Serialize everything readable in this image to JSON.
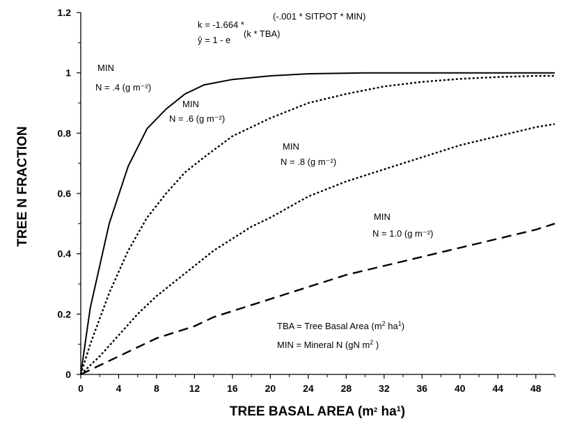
{
  "chart_data": {
    "type": "line",
    "xlabel": "TREE BASAL AREA (m² ha¹)",
    "ylabel": "TREE N FRACTION",
    "xlim": [
      0,
      50
    ],
    "ylim": [
      0,
      1.2
    ],
    "x_ticks": [
      "0",
      "4",
      "8",
      "12",
      "16",
      "20",
      "24",
      "28",
      "32",
      "36",
      "40",
      "44",
      "48"
    ],
    "y_ticks": [
      "0",
      "0.2",
      "0.4",
      "0.6",
      "0.8",
      "1",
      "1.2"
    ],
    "grid": false,
    "equation": {
      "line1": "k = -1.664 *",
      "line1_exponent": "(-.001 * SITPOT * MIN)",
      "line2": "ŷ = 1 - e",
      "line2_exponent": "(k * TBA)"
    },
    "series": [
      {
        "label_top": "MIN",
        "label_bottom": "N = .4 (g m⁻²)",
        "style": "solid",
        "points": [
          [
            0,
            0
          ],
          [
            1,
            0.22
          ],
          [
            3,
            0.5
          ],
          [
            5,
            0.69
          ],
          [
            7,
            0.815
          ],
          [
            9,
            0.88
          ],
          [
            11,
            0.93
          ],
          [
            13,
            0.96
          ],
          [
            16,
            0.978
          ],
          [
            20,
            0.99
          ],
          [
            24,
            0.997
          ],
          [
            30,
            1.0
          ],
          [
            40,
            1.0
          ],
          [
            50,
            1.0
          ]
        ]
      },
      {
        "label_top": "MIN",
        "label_bottom": "N = .6 (g m⁻²)",
        "style": "dotted",
        "points": [
          [
            0,
            0
          ],
          [
            1,
            0.1
          ],
          [
            3,
            0.27
          ],
          [
            5,
            0.41
          ],
          [
            7,
            0.52
          ],
          [
            9,
            0.6
          ],
          [
            11,
            0.67
          ],
          [
            13,
            0.72
          ],
          [
            16,
            0.79
          ],
          [
            20,
            0.85
          ],
          [
            24,
            0.9
          ],
          [
            28,
            0.93
          ],
          [
            32,
            0.955
          ],
          [
            36,
            0.97
          ],
          [
            40,
            0.98
          ],
          [
            44,
            0.986
          ],
          [
            48,
            0.99
          ],
          [
            50,
            0.99
          ]
        ]
      },
      {
        "label_top": "MIN",
        "label_bottom": "N = .8 (g m⁻²)",
        "style": "dotted",
        "points": [
          [
            0,
            0
          ],
          [
            2,
            0.06
          ],
          [
            4,
            0.13
          ],
          [
            6,
            0.2
          ],
          [
            8,
            0.26
          ],
          [
            10,
            0.31
          ],
          [
            12,
            0.36
          ],
          [
            14,
            0.41
          ],
          [
            16,
            0.45
          ],
          [
            18,
            0.49
          ],
          [
            20,
            0.52
          ],
          [
            24,
            0.59
          ],
          [
            28,
            0.64
          ],
          [
            32,
            0.68
          ],
          [
            36,
            0.72
          ],
          [
            40,
            0.76
          ],
          [
            44,
            0.79
          ],
          [
            48,
            0.82
          ],
          [
            50,
            0.83
          ]
        ]
      },
      {
        "label_top": "MIN",
        "label_bottom": "N = 1.0 (g m⁻²)",
        "style": "dashed",
        "points": [
          [
            0,
            0
          ],
          [
            2,
            0.03
          ],
          [
            4,
            0.06
          ],
          [
            6,
            0.09
          ],
          [
            8,
            0.12
          ],
          [
            10,
            0.14
          ],
          [
            12,
            0.16
          ],
          [
            14,
            0.19
          ],
          [
            16,
            0.21
          ],
          [
            18,
            0.23
          ],
          [
            20,
            0.25
          ],
          [
            24,
            0.29
          ],
          [
            28,
            0.33
          ],
          [
            32,
            0.36
          ],
          [
            36,
            0.39
          ],
          [
            40,
            0.42
          ],
          [
            44,
            0.45
          ],
          [
            48,
            0.48
          ],
          [
            50,
            0.5
          ]
        ]
      }
    ],
    "legend_notes": [
      "TBA = Tree Basal Area (m² ha¹)",
      "MIN = Mineral N (gN m²)"
    ]
  }
}
